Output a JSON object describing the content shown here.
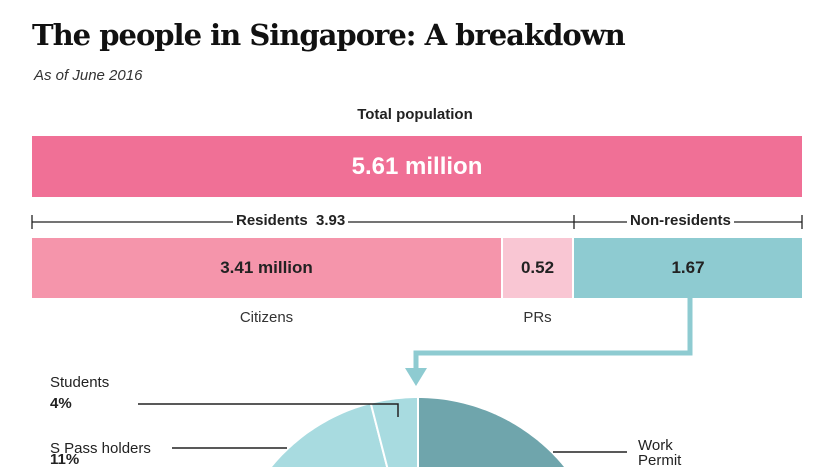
{
  "title": "The people in Singapore: A breakdown",
  "subtitle": "As of June 2016",
  "colors": {
    "total": "#f07096",
    "citizens": "#f595ab",
    "prs": "#f9c6d3",
    "non_residents": "#8ecbd1",
    "work_permit": "#6fa5ac",
    "light_teal": "#a8dbe0"
  },
  "chart_data": [
    {
      "type": "bar",
      "title": "Total population",
      "categories": [
        "Total population"
      ],
      "values": [
        5.61
      ],
      "data_labels": [
        "5.61 million"
      ],
      "unit": "million"
    },
    {
      "type": "bar",
      "stacked": true,
      "groups": [
        {
          "label": "Residents",
          "value_label": "3.93",
          "value": 3.93
        },
        {
          "label": "Non-residents"
        }
      ],
      "categories": [
        "Citizens",
        "PRs",
        "Non-residents"
      ],
      "values": [
        3.41,
        0.52,
        1.67
      ],
      "data_labels": [
        "3.41 million",
        "0.52",
        "1.67"
      ]
    },
    {
      "type": "pie",
      "slices": [
        {
          "label": "Students",
          "value_label": "4%",
          "value": 4
        },
        {
          "label": "S Pass holders",
          "value_label": "11%",
          "value": 11
        },
        {
          "label_line1": "Work",
          "label_line2": "Permit"
        }
      ]
    }
  ]
}
